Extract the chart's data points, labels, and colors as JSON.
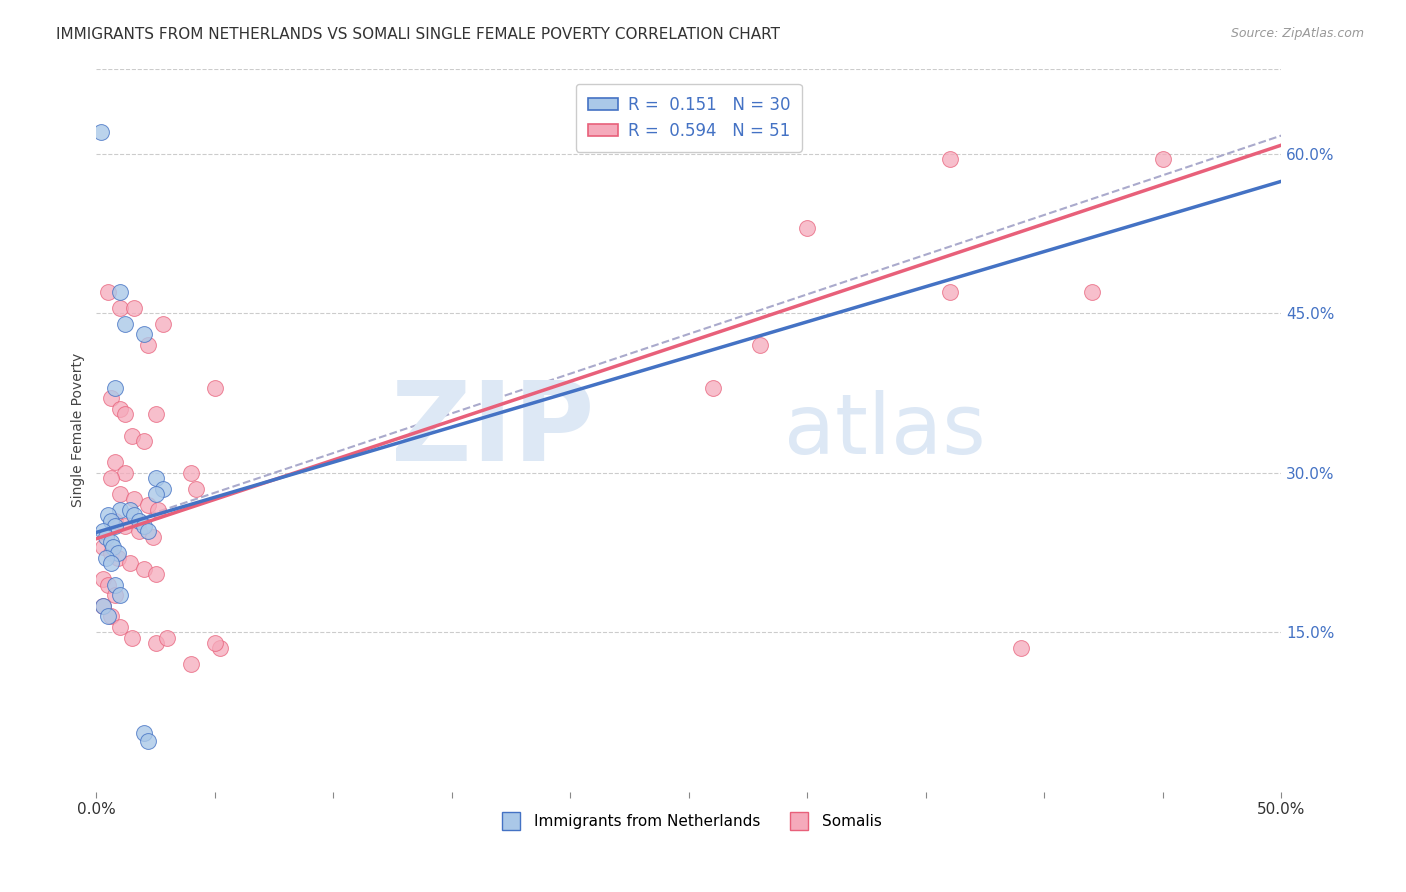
{
  "title": "IMMIGRANTS FROM NETHERLANDS VS SOMALI SINGLE FEMALE POVERTY CORRELATION CHART",
  "source": "Source: ZipAtlas.com",
  "ylabel": "Single Female Poverty",
  "right_yticks": [
    "60.0%",
    "45.0%",
    "30.0%",
    "15.0%"
  ],
  "legend_blue": "R =  0.151   N = 30",
  "legend_pink": "R =  0.594   N = 51",
  "legend_label_blue": "Immigrants from Netherlands",
  "legend_label_pink": "Somalis",
  "watermark_zip": "ZIP",
  "watermark_atlas": "atlas",
  "blue_scatter": [
    [
      0.002,
      0.62
    ],
    [
      0.01,
      0.47
    ],
    [
      0.012,
      0.44
    ],
    [
      0.02,
      0.43
    ],
    [
      0.008,
      0.38
    ],
    [
      0.025,
      0.295
    ],
    [
      0.028,
      0.285
    ],
    [
      0.01,
      0.265
    ],
    [
      0.014,
      0.265
    ],
    [
      0.016,
      0.26
    ],
    [
      0.018,
      0.255
    ],
    [
      0.02,
      0.25
    ],
    [
      0.022,
      0.245
    ],
    [
      0.025,
      0.28
    ],
    [
      0.005,
      0.26
    ],
    [
      0.006,
      0.255
    ],
    [
      0.008,
      0.25
    ],
    [
      0.003,
      0.245
    ],
    [
      0.004,
      0.24
    ],
    [
      0.006,
      0.235
    ],
    [
      0.007,
      0.23
    ],
    [
      0.009,
      0.225
    ],
    [
      0.004,
      0.22
    ],
    [
      0.006,
      0.215
    ],
    [
      0.008,
      0.195
    ],
    [
      0.01,
      0.185
    ],
    [
      0.003,
      0.175
    ],
    [
      0.005,
      0.165
    ],
    [
      0.02,
      0.055
    ],
    [
      0.022,
      0.048
    ]
  ],
  "pink_scatter": [
    [
      0.005,
      0.47
    ],
    [
      0.01,
      0.455
    ],
    [
      0.016,
      0.455
    ],
    [
      0.022,
      0.42
    ],
    [
      0.028,
      0.44
    ],
    [
      0.006,
      0.37
    ],
    [
      0.01,
      0.36
    ],
    [
      0.012,
      0.355
    ],
    [
      0.025,
      0.355
    ],
    [
      0.015,
      0.335
    ],
    [
      0.02,
      0.33
    ],
    [
      0.008,
      0.31
    ],
    [
      0.012,
      0.3
    ],
    [
      0.04,
      0.3
    ],
    [
      0.042,
      0.285
    ],
    [
      0.006,
      0.295
    ],
    [
      0.01,
      0.28
    ],
    [
      0.016,
      0.275
    ],
    [
      0.022,
      0.27
    ],
    [
      0.026,
      0.265
    ],
    [
      0.008,
      0.255
    ],
    [
      0.012,
      0.25
    ],
    [
      0.018,
      0.245
    ],
    [
      0.024,
      0.24
    ],
    [
      0.003,
      0.23
    ],
    [
      0.006,
      0.225
    ],
    [
      0.009,
      0.22
    ],
    [
      0.014,
      0.215
    ],
    [
      0.02,
      0.21
    ],
    [
      0.025,
      0.205
    ],
    [
      0.003,
      0.2
    ],
    [
      0.005,
      0.195
    ],
    [
      0.008,
      0.185
    ],
    [
      0.003,
      0.175
    ],
    [
      0.006,
      0.165
    ],
    [
      0.01,
      0.155
    ],
    [
      0.015,
      0.145
    ],
    [
      0.025,
      0.14
    ],
    [
      0.03,
      0.145
    ],
    [
      0.04,
      0.12
    ],
    [
      0.052,
      0.135
    ],
    [
      0.3,
      0.53
    ],
    [
      0.36,
      0.47
    ],
    [
      0.36,
      0.595
    ],
    [
      0.42,
      0.47
    ],
    [
      0.45,
      0.595
    ],
    [
      0.05,
      0.14
    ],
    [
      0.05,
      0.38
    ],
    [
      0.39,
      0.135
    ],
    [
      0.28,
      0.42
    ],
    [
      0.26,
      0.38
    ]
  ],
  "xlim": [
    0,
    0.5
  ],
  "ylim": [
    0,
    0.68
  ],
  "pink_line_x": [
    0.0,
    0.5
  ],
  "pink_line_y": [
    0.238,
    0.608
  ],
  "blue_line_x": [
    0.0,
    0.5
  ],
  "blue_line_y": [
    0.244,
    0.574
  ],
  "dashed_line_x": [
    0.0,
    0.5
  ],
  "dashed_line_y": [
    0.244,
    0.617
  ],
  "scatter_size": 130,
  "blue_color": "#aac8e8",
  "pink_color": "#f5aabb",
  "blue_edge_color": "#4472c4",
  "pink_edge_color": "#e8607a",
  "blue_line_color": "#4472c4",
  "pink_line_color": "#e8607a",
  "dashed_line_color": "#aaaacc",
  "title_fontsize": 11,
  "source_fontsize": 9,
  "axis_label_fontsize": 10,
  "legend_fontsize": 12,
  "right_axis_color": "#4472c4",
  "watermark_color": "#dde8f5",
  "grid_color": "#cccccc",
  "xtick_positions": [
    0,
    0.05,
    0.1,
    0.15,
    0.2,
    0.25,
    0.3,
    0.35,
    0.4,
    0.45,
    0.5
  ]
}
